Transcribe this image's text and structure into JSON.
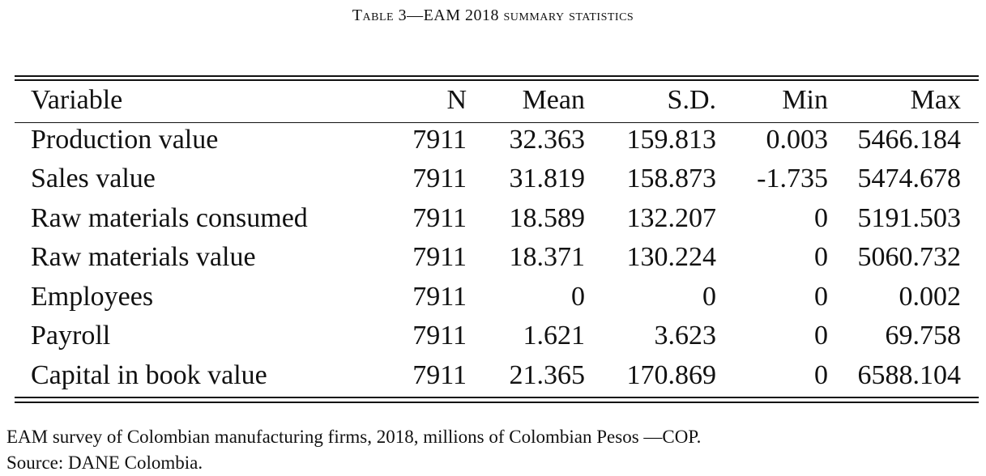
{
  "caption": "Table 3—EAM 2018 summary statistics",
  "table": {
    "headers": [
      "Variable",
      "N",
      "Mean",
      "S.D.",
      "Min",
      "Max"
    ],
    "rows": [
      [
        "Production value",
        "7911",
        "32.363",
        "159.813",
        "0.003",
        "5466.184"
      ],
      [
        "Sales value",
        "7911",
        "31.819",
        "158.873",
        "-1.735",
        "5474.678"
      ],
      [
        "Raw materials consumed",
        "7911",
        "18.589",
        "132.207",
        "0",
        "5191.503"
      ],
      [
        "Raw materials value",
        "7911",
        "18.371",
        "130.224",
        "0",
        "5060.732"
      ],
      [
        "Employees",
        "7911",
        "0",
        "0",
        "0",
        "0.002"
      ],
      [
        "Payroll",
        "7911",
        "1.621",
        "3.623",
        "0",
        "69.758"
      ],
      [
        "Capital in book value",
        "7911",
        "21.365",
        "170.869",
        "0",
        "6588.104"
      ]
    ]
  },
  "notes": {
    "line1": "EAM survey of Colombian manufacturing firms, 2018, millions of Colombian Pesos —COP.",
    "line2": "Source: DANE Colombia."
  }
}
